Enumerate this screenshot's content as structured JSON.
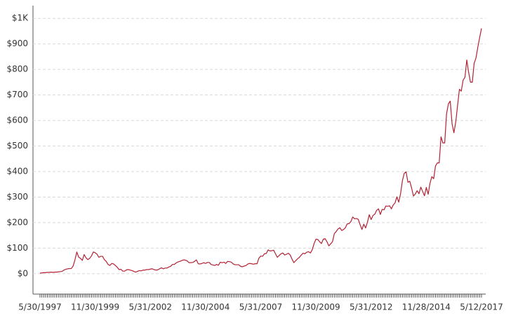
{
  "chart_data": {
    "type": "line",
    "categories": [
      "5/30/1997",
      null,
      null,
      null,
      null,
      null,
      null,
      null,
      null,
      null,
      null,
      null,
      null,
      null,
      null,
      null,
      null,
      null,
      null,
      null,
      null,
      null,
      null,
      null,
      null,
      null,
      null,
      null,
      null,
      null,
      "11/30/1999",
      null,
      null,
      null,
      null,
      null,
      null,
      null,
      null,
      null,
      null,
      null,
      null,
      null,
      null,
      null,
      null,
      null,
      null,
      null,
      null,
      null,
      null,
      null,
      null,
      null,
      null,
      null,
      null,
      null,
      "5/31/2002",
      null,
      null,
      null,
      null,
      null,
      null,
      null,
      null,
      null,
      null,
      null,
      null,
      null,
      null,
      null,
      null,
      null,
      null,
      null,
      null,
      null,
      null,
      null,
      null,
      null,
      null,
      null,
      null,
      null,
      "11/30/2004",
      null,
      null,
      null,
      null,
      null,
      null,
      null,
      null,
      null,
      null,
      null,
      null,
      null,
      null,
      null,
      null,
      null,
      null,
      null,
      null,
      null,
      null,
      null,
      null,
      null,
      null,
      null,
      null,
      null,
      "5/31/2007",
      null,
      null,
      null,
      null,
      null,
      null,
      null,
      null,
      null,
      null,
      null,
      null,
      null,
      null,
      null,
      null,
      null,
      null,
      null,
      null,
      null,
      null,
      null,
      null,
      null,
      null,
      null,
      null,
      null,
      "11/30/2009",
      null,
      null,
      null,
      null,
      null,
      null,
      null,
      null,
      null,
      null,
      null,
      null,
      null,
      null,
      null,
      null,
      null,
      null,
      null,
      null,
      null,
      null,
      null,
      null,
      null,
      null,
      null,
      null,
      null,
      "5/31/2012",
      null,
      null,
      null,
      null,
      null,
      null,
      null,
      null,
      null,
      null,
      null,
      null,
      null,
      null,
      null,
      null,
      null,
      null,
      null,
      null,
      null,
      null,
      null,
      null,
      null,
      null,
      null,
      null,
      null,
      "11/28/2014",
      null,
      null,
      null,
      null,
      null,
      null,
      null,
      null,
      null,
      null,
      null,
      null,
      null,
      null,
      null,
      null,
      null,
      null,
      null,
      null,
      null,
      null,
      null,
      null,
      null,
      null,
      null,
      null,
      null,
      "5/12/2017"
    ],
    "series": [
      {
        "color": "#b22234",
        "values": [
          2,
          3,
          4,
          4,
          5,
          5,
          6,
          5,
          6,
          6,
          7,
          8,
          9,
          14,
          17,
          19,
          20,
          20,
          30,
          54,
          85,
          65,
          60,
          52,
          75,
          62,
          55,
          60,
          70,
          85,
          82,
          76,
          64,
          68,
          68,
          55,
          48,
          36,
          32,
          40,
          38,
          32,
          25,
          16,
          17,
          10,
          10,
          15,
          16,
          14,
          12,
          9,
          6,
          9,
          12,
          11,
          14,
          14,
          16,
          16,
          18,
          19,
          16,
          14,
          15,
          19,
          23,
          19,
          22,
          22,
          26,
          29,
          36,
          36,
          42,
          46,
          48,
          51,
          54,
          53,
          50,
          43,
          43,
          44,
          48,
          54,
          39,
          38,
          40,
          43,
          40,
          44,
          44,
          36,
          34,
          32,
          36,
          33,
          45,
          43,
          45,
          40,
          48,
          47,
          45,
          38,
          35,
          35,
          35,
          29,
          27,
          30,
          32,
          38,
          40,
          39,
          37,
          39,
          39,
          61,
          69,
          68,
          78,
          79,
          93,
          89,
          90,
          92,
          78,
          64,
          71,
          78,
          81,
          73,
          76,
          80,
          73,
          57,
          43,
          51,
          58,
          64,
          73,
          80,
          78,
          84,
          86,
          81,
          94,
          118,
          135,
          134,
          125,
          118,
          135,
          137,
          125,
          109,
          117,
          125,
          157,
          165,
          175,
          180,
          169,
          173,
          180,
          195,
          196,
          204,
          222,
          215,
          216,
          213,
          192,
          173,
          194,
          179,
          202,
          231,
          212,
          228,
          233,
          248,
          254,
          232,
          252,
          250,
          265,
          264,
          266,
          254,
          269,
          277,
          301,
          280,
          313,
          364,
          393,
          399,
          358,
          362,
          336,
          304,
          312,
          325,
          313,
          339,
          322,
          305,
          338,
          311,
          354,
          380,
          372,
          422,
          434,
          434,
          536,
          512,
          512,
          626,
          665,
          676,
          587,
          552,
          594,
          659,
          722,
          715,
          758,
          769,
          837,
          789,
          750,
          750,
          824,
          845,
          887,
          925,
          961
        ]
      }
    ],
    "ylim": [
      -80,
      1050
    ],
    "yticks": [
      {
        "value": 0,
        "label": "$0"
      },
      {
        "value": 100,
        "label": "$100"
      },
      {
        "value": 200,
        "label": "$200"
      },
      {
        "value": 300,
        "label": "$300"
      },
      {
        "value": 400,
        "label": "$400"
      },
      {
        "value": 500,
        "label": "$500"
      },
      {
        "value": 600,
        "label": "$600"
      },
      {
        "value": 700,
        "label": "$700"
      },
      {
        "value": 800,
        "label": "$800"
      },
      {
        "value": 900,
        "label": "$900"
      },
      {
        "value": 1000,
        "label": "$1K"
      }
    ],
    "grid": true
  }
}
